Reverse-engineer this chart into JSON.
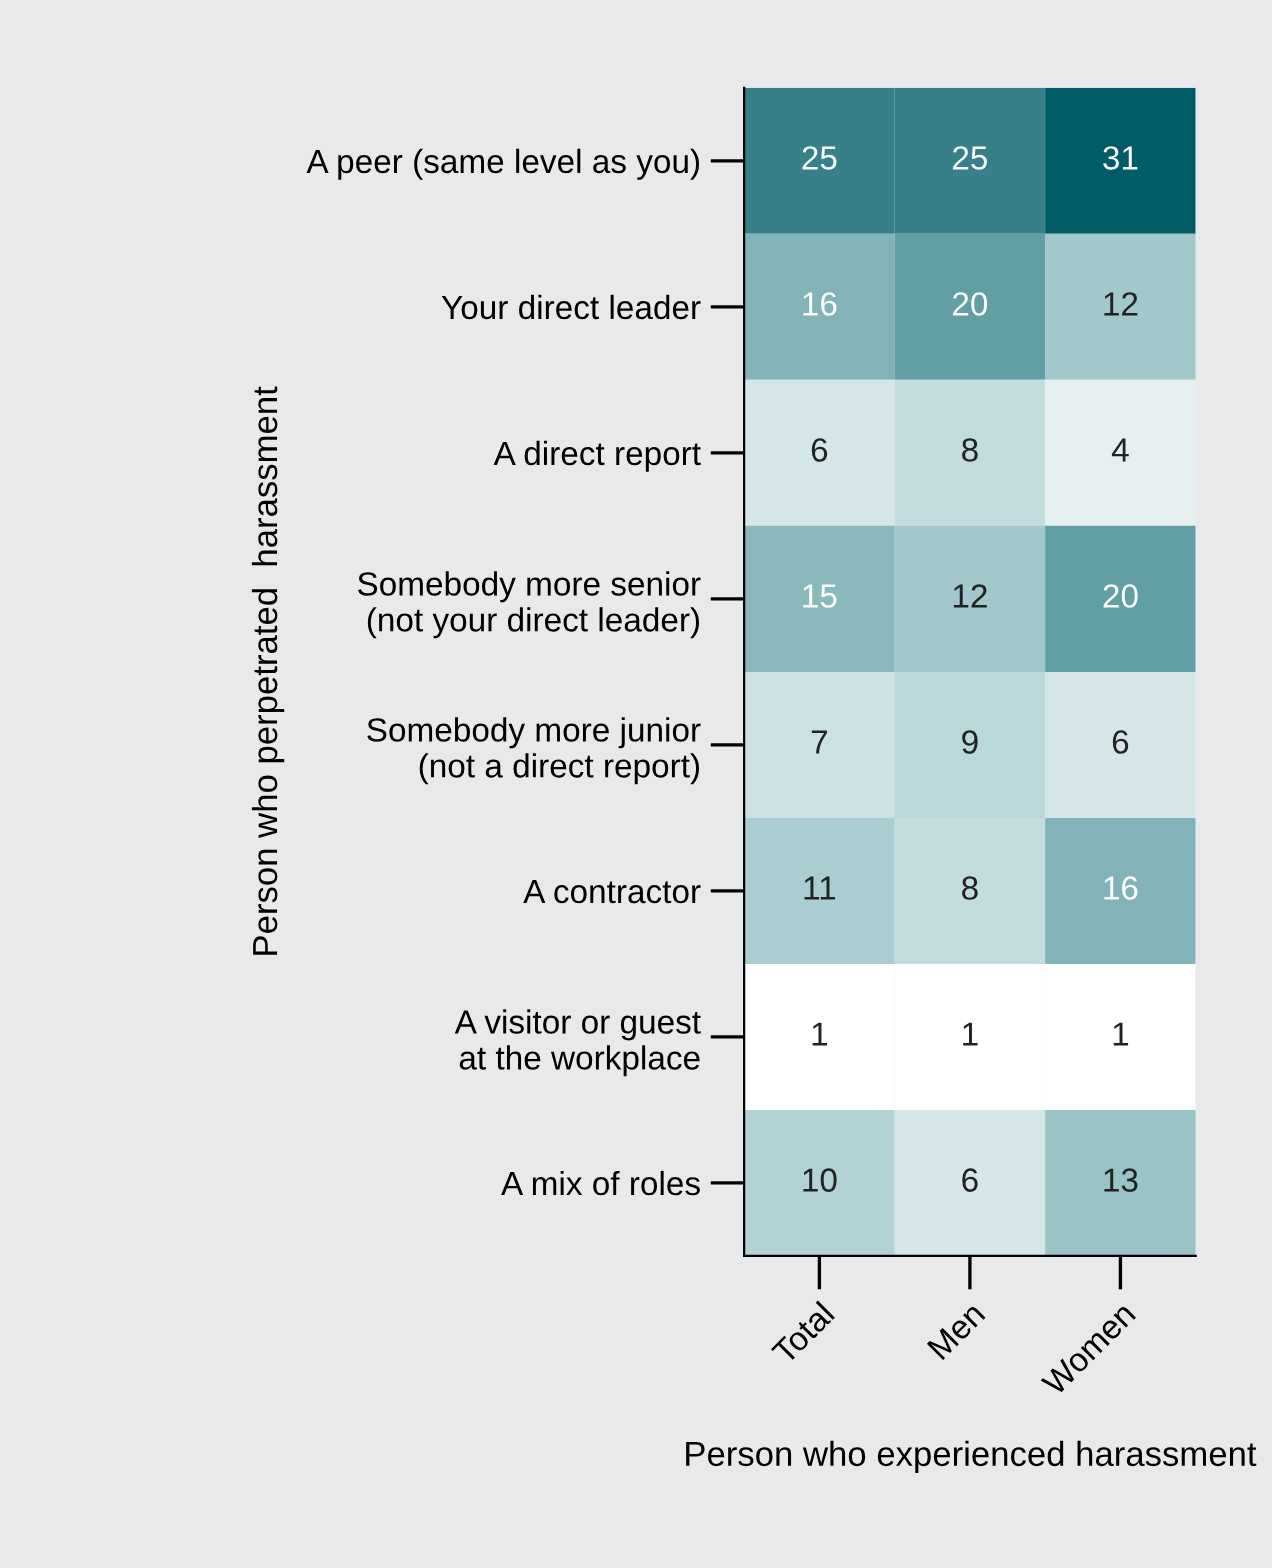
{
  "chart_data": {
    "type": "heatmap",
    "xlabel": "Person who experienced harassment",
    "ylabel": "Person who perpetrated  harassment",
    "categories": [
      "Total",
      "Men",
      "Women"
    ],
    "y_categories": [
      "A peer (same level as you)",
      "Your direct leader",
      "A direct report",
      "Somebody more senior\n(not your direct leader)",
      "Somebody more junior\n(not a direct report)",
      "A contractor",
      "A visitor or guest\nat the workplace",
      "A mix of roles"
    ],
    "cells": [
      [
        25,
        25,
        31
      ],
      [
        16,
        20,
        12
      ],
      [
        6,
        8,
        4
      ],
      [
        15,
        12,
        20
      ],
      [
        7,
        9,
        6
      ],
      [
        11,
        8,
        16
      ],
      [
        1,
        1,
        1
      ],
      [
        10,
        6,
        13
      ]
    ],
    "data_labels": true
  }
}
